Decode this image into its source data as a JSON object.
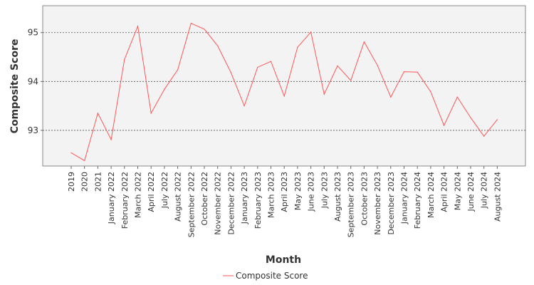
{
  "chart_data": {
    "type": "line",
    "xlabel": "Month",
    "ylabel": "Composite Score",
    "ylim": [
      92.27,
      95.55
    ],
    "yticks": [
      93,
      94,
      95
    ],
    "grid": true,
    "legend_position": "bottom-center",
    "categories": [
      "2019",
      "2020",
      "2021",
      "January 2022",
      "February 2022",
      "March 2022",
      "April 2022",
      "July 2022",
      "August 2022",
      "September 2022",
      "October 2022",
      "November 2022",
      "December 2022",
      "January 2023",
      "February 2023",
      "March 2023",
      "April 2023",
      "May 2023",
      "June 2023",
      "July 2023",
      "August 2023",
      "September 2023",
      "October 2023",
      "November 2023",
      "December 2023",
      "January 2024",
      "February 2024",
      "March 2024",
      "April 2024",
      "May 2024",
      "June 2024",
      "July 2024",
      "August 2024"
    ],
    "series": [
      {
        "name": "Composite Score",
        "color": "#ff5555",
        "values": [
          92.54,
          92.38,
          93.35,
          92.81,
          94.45,
          95.13,
          93.35,
          93.84,
          94.24,
          95.19,
          95.07,
          94.73,
          94.18,
          93.5,
          94.29,
          94.41,
          93.7,
          94.7,
          95.01,
          93.74,
          94.32,
          94.02,
          94.81,
          94.33,
          93.68,
          94.2,
          94.19,
          93.79,
          93.1,
          93.68,
          93.26,
          92.88,
          93.22
        ]
      }
    ]
  },
  "colors": {
    "plot_background": "#f3f3f3",
    "grid": "#555555",
    "axis": "#666666",
    "frame": "#888888"
  }
}
